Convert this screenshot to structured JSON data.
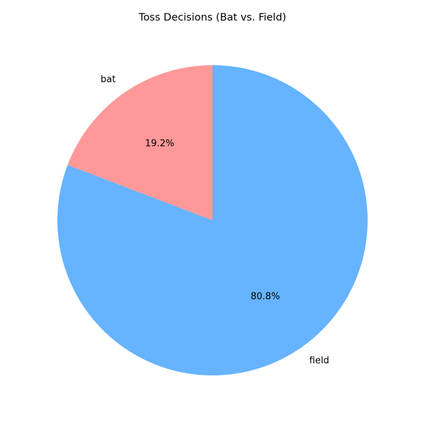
{
  "chart_data": {
    "type": "pie",
    "title": "Toss Decisions (Bat vs. Field)",
    "start_angle_deg": 90,
    "direction": "counterclockwise",
    "slices": [
      {
        "label": "bat",
        "value": 19.2,
        "pct_label": "19.2%",
        "color": "#ff9999"
      },
      {
        "label": "field",
        "value": 80.8,
        "pct_label": "80.8%",
        "color": "#66b3ff"
      }
    ]
  }
}
